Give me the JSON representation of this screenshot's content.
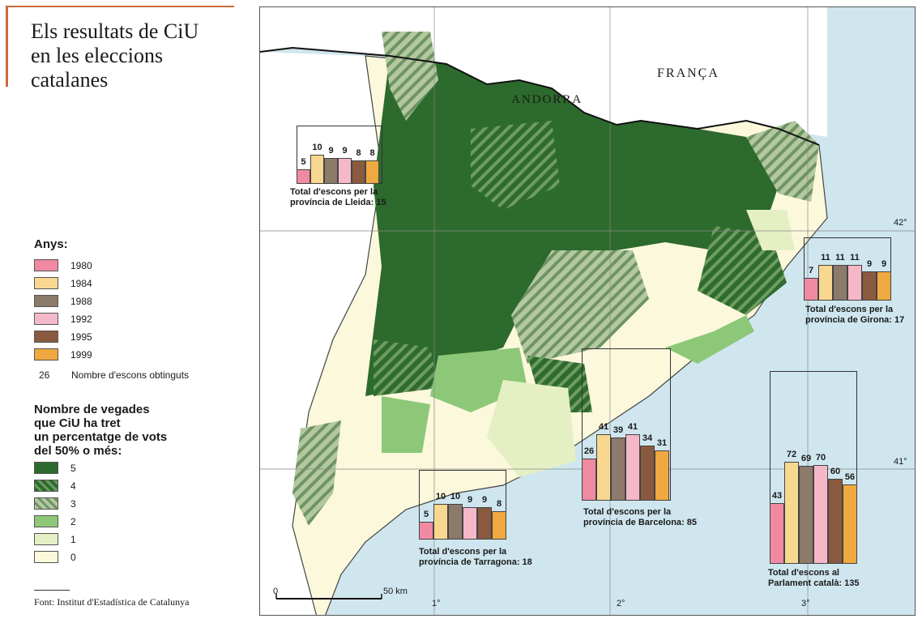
{
  "title": {
    "lines": [
      "Els resultats de CiU",
      "en les eleccions",
      "catalanes"
    ]
  },
  "legend_years": {
    "heading": "Anys:",
    "items": [
      {
        "year": "1980",
        "color": "#f08aa2"
      },
      {
        "year": "1984",
        "color": "#f8d890"
      },
      {
        "year": "1988",
        "color": "#8c7a6a"
      },
      {
        "year": "1992",
        "color": "#f5b8c8"
      },
      {
        "year": "1995",
        "color": "#8a5a40"
      },
      {
        "year": "1999",
        "color": "#f0a840"
      }
    ],
    "count_number": "26",
    "count_label": "Nombre d'escons obtinguts"
  },
  "legend_times": {
    "heading_lines": [
      "Nombre de vegades",
      "que CiU ha tret",
      "un percentatge de vots",
      "del 50% o més:"
    ],
    "items": [
      {
        "value": "5",
        "color": "#2d6a2d",
        "pattern": "solid"
      },
      {
        "value": "4",
        "color": "#3d7a3d",
        "pattern": "hatch-dark"
      },
      {
        "value": "3",
        "color": "#9cbc84",
        "pattern": "hatch-light"
      },
      {
        "value": "2",
        "color": "#8cc878",
        "pattern": "solid"
      },
      {
        "value": "1",
        "color": "#e4f0c4",
        "pattern": "solid"
      },
      {
        "value": "0",
        "color": "#fcf8dc",
        "pattern": "solid"
      }
    ]
  },
  "source": "Font: Institut d'Estadística de Catalunya",
  "map": {
    "labels": {
      "franca": "FRANÇA",
      "andorra": "ANDORRA"
    },
    "coords": {
      "lat42": "42°",
      "lat41": "41°",
      "lon1": "1°",
      "lon2": "2°",
      "lon3": "3°"
    },
    "scale": {
      "zero": "0",
      "end": "50 km"
    }
  },
  "charts": [
    {
      "id": "lleida",
      "values": [
        5,
        10,
        9,
        9,
        8,
        8
      ],
      "caption": [
        "Total d'escons per la",
        "província de Lleida: 15"
      ]
    },
    {
      "id": "girona",
      "values": [
        7,
        11,
        11,
        11,
        9,
        9
      ],
      "caption": [
        "Total d'escons per la",
        "província de Girona: 17"
      ]
    },
    {
      "id": "tarragona",
      "values": [
        5,
        10,
        10,
        9,
        9,
        8
      ],
      "caption": [
        "Total d'escons per la",
        "província de Tarragona: 18"
      ]
    },
    {
      "id": "barcelona",
      "values": [
        26,
        41,
        39,
        41,
        34,
        31
      ],
      "caption": [
        "Total d'escons per la",
        "província de Barcelona: 85"
      ]
    },
    {
      "id": "parlament",
      "values": [
        43,
        72,
        69,
        70,
        60,
        56
      ],
      "caption": [
        "Total d'escons al",
        "Parlament català: 135"
      ]
    }
  ]
}
